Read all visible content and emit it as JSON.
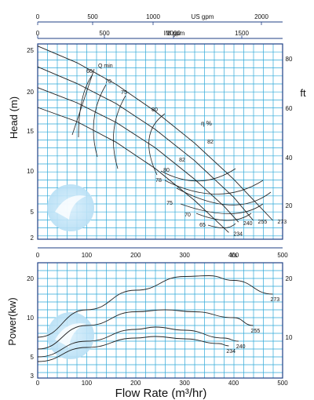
{
  "colors": {
    "background": "#ffffff",
    "grid": "#2ea9d8",
    "frame": "#1f3f86",
    "curve": "#222222",
    "watermark": "#bfe3f7"
  },
  "chart_data": [
    {
      "type": "line",
      "panel": "head",
      "ylabel": "Head (m)",
      "right_axis_label": "ft",
      "xlim": [
        0,
        500
      ],
      "ylim_m": [
        2,
        26
      ],
      "top_axes": [
        {
          "unit_label": "US gpm",
          "ticks": [
            0,
            500,
            1000,
            2000
          ]
        },
        {
          "unit_label": "IM gpm",
          "ticks": [
            0,
            500,
            1000,
            1500
          ]
        }
      ],
      "x_ticks": [
        0,
        100,
        200,
        300,
        400,
        500
      ],
      "x_unit_label": "l/s",
      "y_ticks": [
        2,
        5,
        10,
        15,
        20,
        25
      ],
      "y_ticks_right_ft": [
        20,
        40,
        60,
        80
      ],
      "annotations": [
        "Q min",
        "η %"
      ],
      "series": [
        {
          "name": "273",
          "x": [
            0,
            80,
            160,
            240,
            320,
            400,
            480
          ],
          "y": [
            25.5,
            23.5,
            20.9,
            17.5,
            13.5,
            9.0,
            4.0
          ]
        },
        {
          "name": "255",
          "x": [
            0,
            80,
            160,
            240,
            320,
            400,
            440
          ],
          "y": [
            23.0,
            21.0,
            18.5,
            15.2,
            11.3,
            6.8,
            4.0
          ]
        },
        {
          "name": "240",
          "x": [
            0,
            80,
            160,
            240,
            320,
            380,
            410
          ],
          "y": [
            20.5,
            18.6,
            16.1,
            12.9,
            9.0,
            5.7,
            3.8
          ]
        },
        {
          "name": "234",
          "x": [
            0,
            80,
            160,
            240,
            320,
            360,
            390
          ],
          "y": [
            18.0,
            16.2,
            13.6,
            10.3,
            6.4,
            4.2,
            2.6
          ]
        }
      ],
      "efficiency_labels": [
        "60",
        "70",
        "75",
        "80",
        "82",
        "82",
        "80",
        "78",
        "75",
        "70",
        "65"
      ]
    },
    {
      "type": "line",
      "panel": "power",
      "ylabel": "Power(kw)",
      "xlabel": "Flow Rate (m³/hr)",
      "xlim": [
        0,
        500
      ],
      "ylim": [
        3,
        22
      ],
      "x_ticks": [
        0,
        100,
        200,
        300,
        400,
        500
      ],
      "y_ticks": [
        3,
        5,
        10,
        20
      ],
      "y_ticks_right": [
        10,
        20
      ],
      "series": [
        {
          "name": "273",
          "x": [
            0,
            100,
            200,
            300,
            350,
            400,
            480
          ],
          "y": [
            7.5,
            12.0,
            17.0,
            20.5,
            20.7,
            19.5,
            16.0
          ]
        },
        {
          "name": "255",
          "x": [
            0,
            100,
            200,
            260,
            320,
            400,
            440
          ],
          "y": [
            6.0,
            9.0,
            11.5,
            12.0,
            11.5,
            10.0,
            9.0
          ]
        },
        {
          "name": "240",
          "x": [
            0,
            100,
            200,
            240,
            300,
            380,
            410
          ],
          "y": [
            5.0,
            7.0,
            8.5,
            8.8,
            8.4,
            7.4,
            7.0
          ]
        },
        {
          "name": "234",
          "x": [
            0,
            100,
            200,
            240,
            300,
            370,
            390
          ],
          "y": [
            4.5,
            6.2,
            7.4,
            7.6,
            7.3,
            6.7,
            6.4
          ]
        }
      ]
    }
  ]
}
